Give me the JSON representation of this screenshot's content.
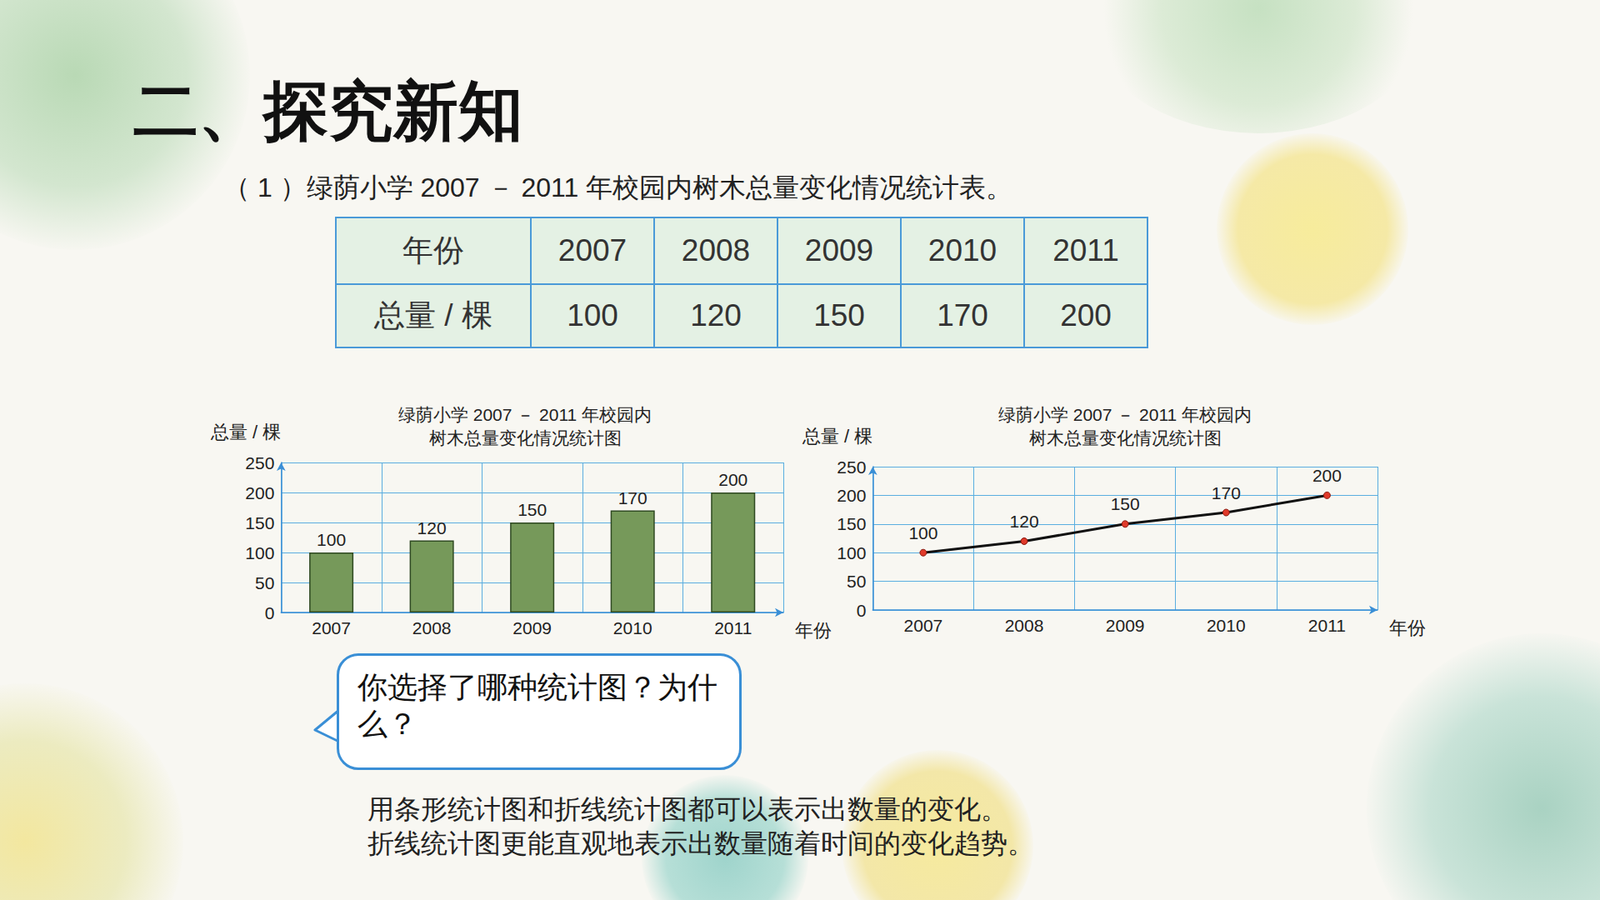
{
  "header": {
    "title": "二、探究新知",
    "caption": "（ 1 ）绿荫小学 2007 － 2011 年校园内树木总量变化情况统计表。"
  },
  "table": {
    "rows": [
      [
        "年份",
        2007,
        2008,
        2009,
        2010,
        2011
      ],
      [
        "总量 / 棵",
        100,
        120,
        150,
        170,
        200
      ]
    ]
  },
  "chart_data": [
    {
      "type": "bar",
      "title": "绿荫小学 2007 － 2011 年校园内树木总量变化情况统计图",
      "x_label": "年份",
      "y_label": "总量 / 棵",
      "categories": [
        "2007",
        "2008",
        "2009",
        "2010",
        "2011"
      ],
      "values": [
        100,
        120,
        150,
        170,
        200
      ],
      "color": "#76995a",
      "ylim": [
        0,
        250
      ],
      "yticks": [
        0,
        50,
        100,
        150,
        200,
        250
      ],
      "grid": true,
      "data_labels": true
    },
    {
      "type": "line",
      "title": "绿荫小学 2007 － 2011 年校园内树木总量变化情况统计图",
      "x_label": "年份",
      "y_label": "总量 / 棵",
      "categories": [
        "2007",
        "2008",
        "2009",
        "2010",
        "2011"
      ],
      "values": [
        100,
        120,
        150,
        170,
        200
      ],
      "color": "#111111",
      "marker": "circle",
      "ylim": [
        0,
        250
      ],
      "yticks": [
        0,
        50,
        100,
        150,
        200,
        250
      ],
      "grid": true,
      "data_labels": true
    }
  ],
  "bubble": {
    "text": "你选择了哪种统计图？为什么？"
  },
  "conclusion": {
    "lines": [
      "用条形统计图和折线统计图都可以表示出数量的变化。",
      "折线统计图更能直观地表示出数量随着时间的变化趋势。"
    ]
  }
}
